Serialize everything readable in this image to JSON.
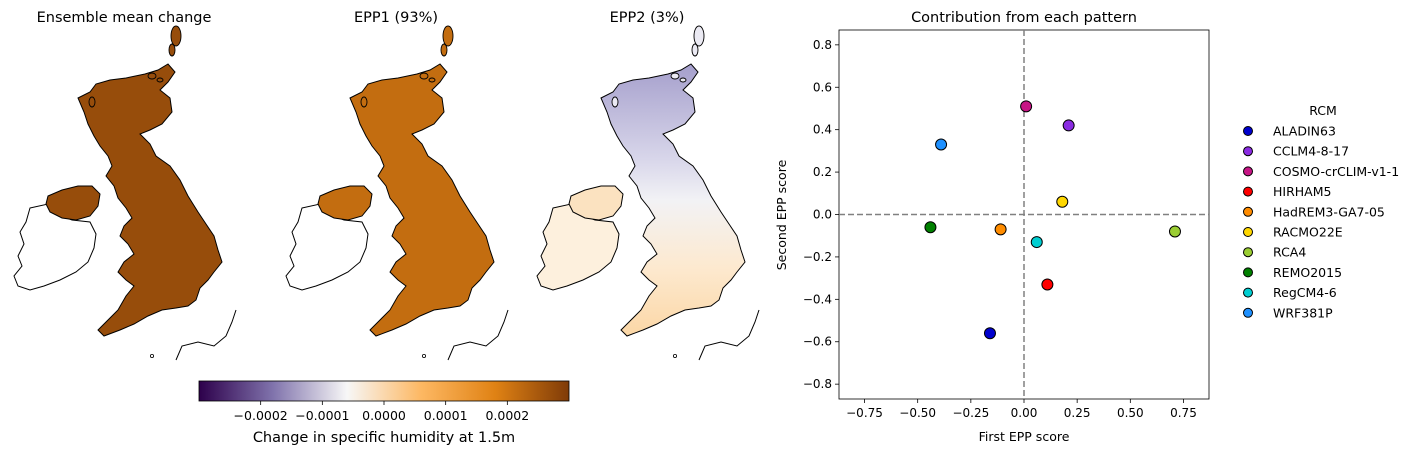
{
  "maps": {
    "panels": [
      {
        "title": "Ensemble mean change",
        "fill_level": 0.9
      },
      {
        "title": "EPP1 (93%)",
        "fill_level": 0.72
      },
      {
        "title": "EPP2 (3%)",
        "fill_level": 0.1
      }
    ],
    "colorbar": {
      "label": "Change in specific humidity at 1.5m",
      "ticks": [
        "−0.0002",
        "−0.0001",
        "0.0000",
        "0.0001",
        "0.0002"
      ],
      "tick_values": [
        -0.0002,
        -0.0001,
        0.0,
        0.0001,
        0.0002
      ],
      "range": [
        -0.0003,
        0.0003
      ],
      "colormap": [
        "#2d004b",
        "#8073ac",
        "#f7f7f7",
        "#fdb863",
        "#e08214",
        "#7f3b08"
      ]
    }
  },
  "chart_data": {
    "type": "scatter",
    "title": "Contribution from each pattern",
    "xlabel": "First EPP score",
    "ylabel": "Second EPP score",
    "xlim": [
      -0.87,
      0.87
    ],
    "ylim": [
      -0.87,
      0.87
    ],
    "xticks": [
      "−0.75",
      "−0.50",
      "−0.25",
      "0.00",
      "0.25",
      "0.50",
      "0.75"
    ],
    "xtick_values": [
      -0.75,
      -0.5,
      -0.25,
      0.0,
      0.25,
      0.5,
      0.75
    ],
    "yticks": [
      "−0.8",
      "−0.6",
      "−0.4",
      "−0.2",
      "0.0",
      "0.2",
      "0.4",
      "0.6",
      "0.8"
    ],
    "ytick_values": [
      -0.8,
      -0.6,
      -0.4,
      -0.2,
      0.0,
      0.2,
      0.4,
      0.6,
      0.8
    ],
    "grid": false,
    "reference_lines": {
      "x": 0,
      "y": 0,
      "style": "dashed",
      "color": "#808080"
    },
    "legend": {
      "title": "RCM",
      "placement": "outside-right"
    },
    "series": [
      {
        "name": "ALADIN63",
        "color": "#0000cd",
        "x": -0.16,
        "y": -0.56
      },
      {
        "name": "CCLM4-8-17",
        "color": "#8a2be2",
        "x": 0.21,
        "y": 0.42
      },
      {
        "name": "COSMO-crCLIM-v1-1",
        "color": "#c71585",
        "x": 0.01,
        "y": 0.51
      },
      {
        "name": "HIRHAM5",
        "color": "#ff0000",
        "x": 0.11,
        "y": -0.33
      },
      {
        "name": "HadREM3-GA7-05",
        "color": "#ff8c00",
        "x": -0.11,
        "y": -0.07
      },
      {
        "name": "RACMO22E",
        "color": "#ffd700",
        "x": 0.18,
        "y": 0.06
      },
      {
        "name": "RCA4",
        "color": "#9acd32",
        "x": 0.71,
        "y": -0.08
      },
      {
        "name": "REMO2015",
        "color": "#008000",
        "x": -0.44,
        "y": -0.06
      },
      {
        "name": "RegCM4-6",
        "color": "#00ced1",
        "x": 0.06,
        "y": -0.13
      },
      {
        "name": "WRF381P",
        "color": "#1e90ff",
        "x": -0.39,
        "y": 0.33
      }
    ]
  }
}
